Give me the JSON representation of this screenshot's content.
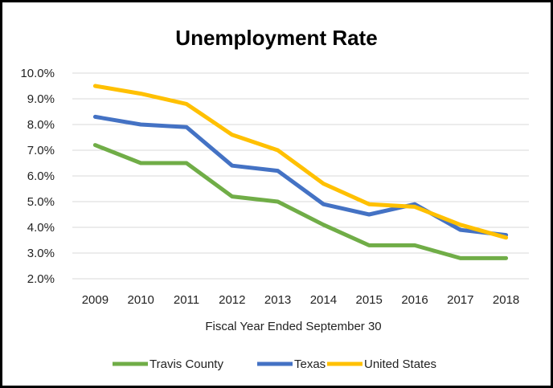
{
  "chart_data": {
    "type": "line",
    "title": "Unemployment Rate",
    "xlabel": "Fiscal Year Ended September 30",
    "ylabel": "",
    "categories": [
      "2009",
      "2010",
      "2011",
      "2012",
      "2013",
      "2014",
      "2015",
      "2016",
      "2017",
      "2018"
    ],
    "ylim": [
      2.0,
      10.0
    ],
    "yticks": [
      2.0,
      3.0,
      4.0,
      5.0,
      6.0,
      7.0,
      8.0,
      9.0,
      10.0
    ],
    "ytick_labels": [
      "2.0%",
      "3.0%",
      "4.0%",
      "5.0%",
      "6.0%",
      "7.0%",
      "8.0%",
      "9.0%",
      "10.0%"
    ],
    "grid": true,
    "legend_position": "bottom",
    "series": [
      {
        "name": "Travis County",
        "color": "#70AD47",
        "values": [
          7.2,
          6.5,
          6.5,
          5.2,
          5.0,
          4.1,
          3.3,
          3.3,
          2.8,
          2.8
        ]
      },
      {
        "name": "Texas",
        "color": "#4472C4",
        "values": [
          8.3,
          8.0,
          7.9,
          6.4,
          6.2,
          4.9,
          4.5,
          4.9,
          3.9,
          3.7
        ]
      },
      {
        "name": "United States",
        "color": "#FFC000",
        "values": [
          9.5,
          9.2,
          8.8,
          7.6,
          7.0,
          5.7,
          4.9,
          4.8,
          4.1,
          3.6
        ]
      }
    ]
  }
}
